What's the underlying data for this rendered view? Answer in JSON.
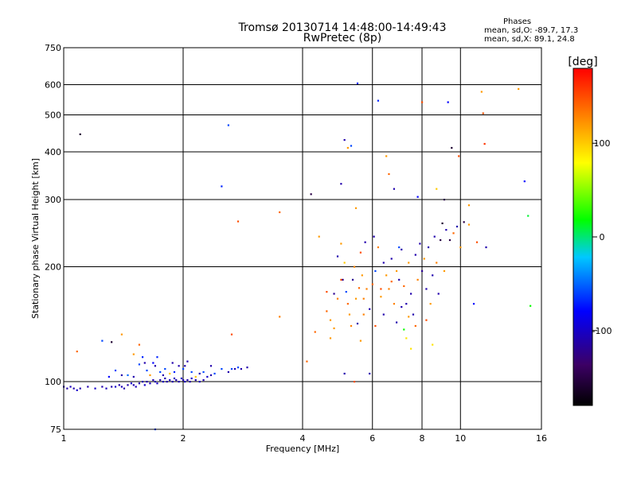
{
  "title": {
    "line1": "Tromsø 20130714 14:48:00-14:49:43",
    "line2": "RwPretec (8p)"
  },
  "phases": {
    "title": "Phases",
    "o_stats": "mean, sd,O: -89.7, 17.3",
    "x_stats": "mean, sd,X:  89.1, 24.8"
  },
  "chart_data": {
    "type": "scatter",
    "xlabel": "Frequency [MHz]",
    "ylabel": "Stationary phase Virtual Height [km]",
    "xscale": "log",
    "yscale": "log",
    "xlim": [
      1,
      16
    ],
    "ylim": [
      75,
      750
    ],
    "xticks": [
      1,
      2,
      4,
      6,
      8,
      10,
      16
    ],
    "yticks": [
      75,
      100,
      200,
      300,
      400,
      500,
      600,
      750
    ],
    "colorbar": {
      "label": "[deg]",
      "range": [
        -180,
        180
      ],
      "ticks": [
        100,
        0,
        -100
      ]
    },
    "points": [
      [
        1.0,
        97,
        -110
      ],
      [
        1.02,
        96,
        -110
      ],
      [
        1.04,
        97,
        -105
      ],
      [
        1.06,
        96,
        -110
      ],
      [
        1.08,
        95,
        -100
      ],
      [
        1.1,
        96,
        -110
      ],
      [
        1.15,
        97,
        -110
      ],
      [
        1.2,
        96,
        -100
      ],
      [
        1.25,
        97,
        -110
      ],
      [
        1.28,
        96,
        -105
      ],
      [
        1.32,
        97,
        -110
      ],
      [
        1.35,
        97,
        -100
      ],
      [
        1.38,
        98,
        -110
      ],
      [
        1.4,
        97,
        -105
      ],
      [
        1.42,
        96,
        -110
      ],
      [
        1.45,
        98,
        -110
      ],
      [
        1.48,
        99,
        -100
      ],
      [
        1.5,
        98,
        -110
      ],
      [
        1.52,
        97,
        -105
      ],
      [
        1.55,
        99,
        -110
      ],
      [
        1.58,
        100,
        -110
      ],
      [
        1.6,
        98,
        -100
      ],
      [
        1.62,
        100,
        -110
      ],
      [
        1.65,
        99,
        -105
      ],
      [
        1.68,
        101,
        -110
      ],
      [
        1.7,
        100,
        -110
      ],
      [
        1.72,
        99,
        -100
      ],
      [
        1.75,
        101,
        -110
      ],
      [
        1.78,
        100,
        -105
      ],
      [
        1.8,
        102,
        -110
      ],
      [
        1.82,
        100,
        -110
      ],
      [
        1.85,
        101,
        -100
      ],
      [
        1.88,
        100,
        -110
      ],
      [
        1.9,
        102,
        -105
      ],
      [
        1.92,
        101,
        -110
      ],
      [
        1.95,
        100,
        -110
      ],
      [
        1.98,
        102,
        -100
      ],
      [
        2.0,
        101,
        -110
      ],
      [
        2.02,
        100,
        -105
      ],
      [
        2.05,
        101,
        -110
      ],
      [
        2.08,
        100,
        -110
      ],
      [
        2.1,
        102,
        -100
      ],
      [
        2.15,
        101,
        -110
      ],
      [
        2.2,
        100,
        -105
      ],
      [
        2.25,
        101,
        -110
      ],
      [
        2.3,
        103,
        -100
      ],
      [
        2.35,
        104,
        -110
      ],
      [
        1.3,
        103,
        -80
      ],
      [
        1.35,
        107,
        -60
      ],
      [
        1.4,
        104,
        -110
      ],
      [
        1.45,
        104,
        -50
      ],
      [
        1.5,
        103,
        -110
      ],
      [
        1.55,
        111,
        -60
      ],
      [
        1.58,
        116,
        -70
      ],
      [
        1.6,
        112,
        -110
      ],
      [
        1.62,
        107,
        -60
      ],
      [
        1.65,
        104,
        120
      ],
      [
        1.68,
        112,
        -80
      ],
      [
        1.7,
        110,
        -110
      ],
      [
        1.72,
        116,
        -70
      ],
      [
        1.75,
        106,
        -60
      ],
      [
        1.78,
        104,
        -110
      ],
      [
        1.8,
        108,
        -60
      ],
      [
        1.85,
        105,
        100
      ],
      [
        1.88,
        112,
        -110
      ],
      [
        1.9,
        106,
        -70
      ],
      [
        1.95,
        110,
        -110
      ],
      [
        2.0,
        108,
        -60
      ],
      [
        2.02,
        110,
        -110
      ],
      [
        2.05,
        113,
        -110
      ],
      [
        2.1,
        106,
        -60
      ],
      [
        2.15,
        103,
        100
      ],
      [
        2.2,
        105,
        -110
      ],
      [
        2.25,
        106,
        -60
      ],
      [
        2.35,
        110,
        -110
      ],
      [
        2.4,
        105,
        -60
      ],
      [
        2.5,
        108,
        -60
      ],
      [
        2.6,
        106,
        -110
      ],
      [
        2.65,
        108,
        -60
      ],
      [
        2.7,
        108,
        -110
      ],
      [
        2.75,
        109,
        -60
      ],
      [
        2.8,
        108,
        -110
      ],
      [
        2.9,
        109,
        -110
      ],
      [
        1.08,
        120,
        140
      ],
      [
        1.25,
        128,
        -60
      ],
      [
        1.32,
        127,
        -160
      ],
      [
        1.4,
        133,
        120
      ],
      [
        1.5,
        118,
        120
      ],
      [
        1.55,
        125,
        140
      ],
      [
        2.65,
        133,
        150
      ],
      [
        1.1,
        445,
        -160
      ],
      [
        1.7,
        75,
        -60
      ],
      [
        2.5,
        325,
        -70
      ],
      [
        2.6,
        470,
        -60
      ],
      [
        2.75,
        263,
        150
      ],
      [
        3.5,
        278,
        140
      ],
      [
        3.5,
        148,
        130
      ],
      [
        4.2,
        310,
        -150
      ],
      [
        4.4,
        240,
        120
      ],
      [
        4.1,
        113,
        140
      ],
      [
        4.6,
        172,
        150
      ],
      [
        4.6,
        153,
        140
      ],
      [
        4.7,
        145,
        120
      ],
      [
        4.8,
        138,
        120
      ],
      [
        4.9,
        165,
        130
      ],
      [
        4.9,
        213,
        -110
      ],
      [
        5.0,
        230,
        120
      ],
      [
        5.05,
        185,
        -120
      ],
      [
        5.1,
        205,
        100
      ],
      [
        5.15,
        172,
        -60
      ],
      [
        5.2,
        160,
        140
      ],
      [
        5.25,
        150,
        120
      ],
      [
        5.3,
        140,
        130
      ],
      [
        5.35,
        185,
        -120
      ],
      [
        5.4,
        200,
        130
      ],
      [
        5.45,
        165,
        120
      ],
      [
        5.5,
        142,
        -110
      ],
      [
        5.55,
        176,
        140
      ],
      [
        5.6,
        218,
        150
      ],
      [
        5.65,
        190,
        120
      ],
      [
        5.7,
        150,
        130
      ],
      [
        5.75,
        232,
        -110
      ],
      [
        5.8,
        175,
        130
      ],
      [
        5.9,
        155,
        -110
      ],
      [
        6.0,
        180,
        140
      ],
      [
        6.05,
        240,
        -110
      ],
      [
        6.1,
        195,
        -60
      ],
      [
        6.2,
        225,
        130
      ],
      [
        6.3,
        167,
        120
      ],
      [
        6.4,
        205,
        -110
      ],
      [
        6.5,
        190,
        120
      ],
      [
        6.6,
        175,
        130
      ],
      [
        6.7,
        210,
        -110
      ],
      [
        6.8,
        160,
        130
      ],
      [
        6.9,
        195,
        120
      ],
      [
        7.0,
        185,
        -110
      ],
      [
        7.1,
        222,
        -110
      ],
      [
        7.2,
        178,
        140
      ],
      [
        7.3,
        160,
        -110
      ],
      [
        7.4,
        205,
        120
      ],
      [
        7.5,
        170,
        -110
      ],
      [
        7.6,
        150,
        -110
      ],
      [
        7.7,
        215,
        -110
      ],
      [
        7.8,
        185,
        130
      ],
      [
        7.9,
        230,
        -110
      ],
      [
        8.0,
        195,
        -120
      ],
      [
        8.1,
        210,
        120
      ],
      [
        8.2,
        175,
        -110
      ],
      [
        8.3,
        225,
        -110
      ],
      [
        8.4,
        160,
        120
      ],
      [
        8.5,
        190,
        -110
      ],
      [
        8.6,
        240,
        -110
      ],
      [
        8.7,
        205,
        130
      ],
      [
        8.8,
        170,
        -110
      ],
      [
        8.9,
        235,
        -150
      ],
      [
        9.0,
        260,
        -160
      ],
      [
        9.1,
        195,
        120
      ],
      [
        9.2,
        250,
        -110
      ],
      [
        9.4,
        235,
        -150
      ],
      [
        9.6,
        245,
        140
      ],
      [
        9.8,
        255,
        -110
      ],
      [
        10.0,
        225,
        120
      ],
      [
        10.2,
        262,
        -150
      ],
      [
        10.5,
        258,
        120
      ],
      [
        5.0,
        330,
        -110
      ],
      [
        5.1,
        430,
        -110
      ],
      [
        5.2,
        410,
        120
      ],
      [
        5.3,
        415,
        -60
      ],
      [
        5.45,
        285,
        120
      ],
      [
        5.5,
        605,
        -70
      ],
      [
        6.2,
        545,
        -70
      ],
      [
        6.5,
        390,
        120
      ],
      [
        6.6,
        350,
        140
      ],
      [
        6.8,
        320,
        -110
      ],
      [
        7.0,
        225,
        -60
      ],
      [
        7.3,
        130,
        90
      ],
      [
        7.5,
        122,
        90
      ],
      [
        7.8,
        305,
        -80
      ],
      [
        8.0,
        540,
        150
      ],
      [
        8.2,
        145,
        150
      ],
      [
        8.5,
        125,
        90
      ],
      [
        8.7,
        320,
        100
      ],
      [
        9.1,
        300,
        -150
      ],
      [
        9.3,
        540,
        -80
      ],
      [
        9.5,
        410,
        -160
      ],
      [
        9.9,
        390,
        150
      ],
      [
        10.5,
        290,
        120
      ],
      [
        10.8,
        160,
        -80
      ],
      [
        11.0,
        232,
        150
      ],
      [
        11.3,
        575,
        120
      ],
      [
        11.4,
        505,
        150
      ],
      [
        11.5,
        420,
        160
      ],
      [
        11.6,
        225,
        -110
      ],
      [
        14.0,
        585,
        120
      ],
      [
        14.5,
        335,
        -80
      ],
      [
        14.8,
        272,
        10
      ],
      [
        15.0,
        158,
        20
      ],
      [
        5.4,
        100,
        150
      ],
      [
        5.1,
        105,
        -110
      ],
      [
        5.9,
        105,
        -110
      ],
      [
        4.3,
        135,
        140
      ],
      [
        4.7,
        130,
        120
      ],
      [
        5.6,
        128,
        120
      ],
      [
        6.1,
        140,
        150
      ],
      [
        6.4,
        150,
        -110
      ],
      [
        6.9,
        143,
        -110
      ],
      [
        7.2,
        137,
        20
      ],
      [
        7.4,
        148,
        120
      ],
      [
        5.0,
        185,
        150
      ],
      [
        4.8,
        170,
        -120
      ],
      [
        5.7,
        165,
        130
      ],
      [
        6.3,
        175,
        150
      ],
      [
        6.7,
        183,
        140
      ],
      [
        7.1,
        157,
        -110
      ],
      [
        7.7,
        140,
        140
      ]
    ]
  }
}
